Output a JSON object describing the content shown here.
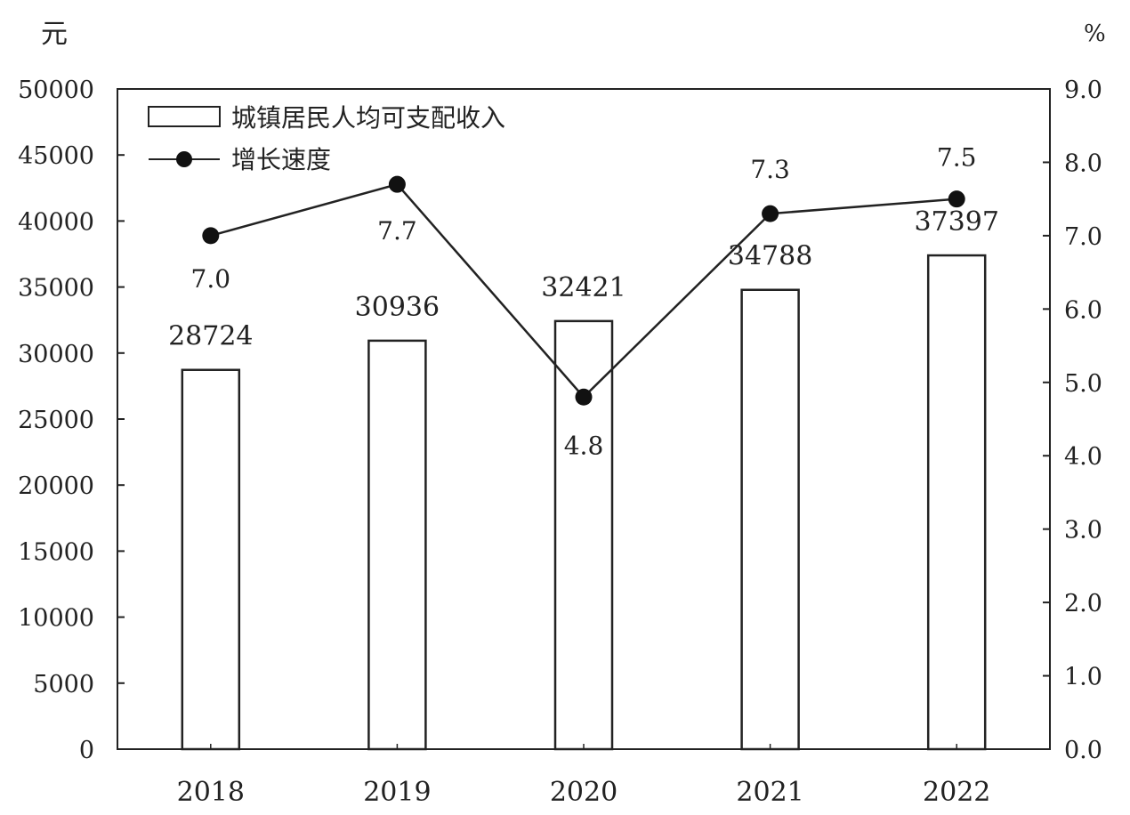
{
  "chart_data": {
    "type": "bar",
    "categories": [
      "2018",
      "2019",
      "2020",
      "2021",
      "2022"
    ],
    "y_left": {
      "unit_label": "元",
      "ylim": [
        0,
        50000
      ],
      "ticks": [
        "0",
        "5000",
        "10000",
        "15000",
        "20000",
        "25000",
        "30000",
        "35000",
        "40000",
        "45000",
        "50000"
      ]
    },
    "y_right": {
      "unit_label": "%",
      "ylim": [
        0,
        9
      ],
      "ticks": [
        "0.0",
        "1.0",
        "2.0",
        "3.0",
        "4.0",
        "5.0",
        "6.0",
        "7.0",
        "8.0",
        "9.0"
      ]
    },
    "series": [
      {
        "name": "城镇居民人均可支配收入",
        "type": "bar",
        "axis": "left",
        "values": [
          28724,
          30936,
          32421,
          34788,
          37397
        ],
        "labels": [
          "28724",
          "30936",
          "32421",
          "34788",
          "37397"
        ]
      },
      {
        "name": "增长速度",
        "type": "line",
        "axis": "right",
        "values": [
          7.0,
          7.7,
          4.8,
          7.3,
          7.5
        ],
        "labels": [
          "7.0",
          "7.7",
          "4.8",
          "7.3",
          "7.5"
        ]
      }
    ],
    "legend_position": "top-left",
    "grid": false,
    "colors": {
      "bar_fill": "#ffffff",
      "bar_stroke": "#222222",
      "line": "#222222",
      "marker": "#111111"
    }
  }
}
